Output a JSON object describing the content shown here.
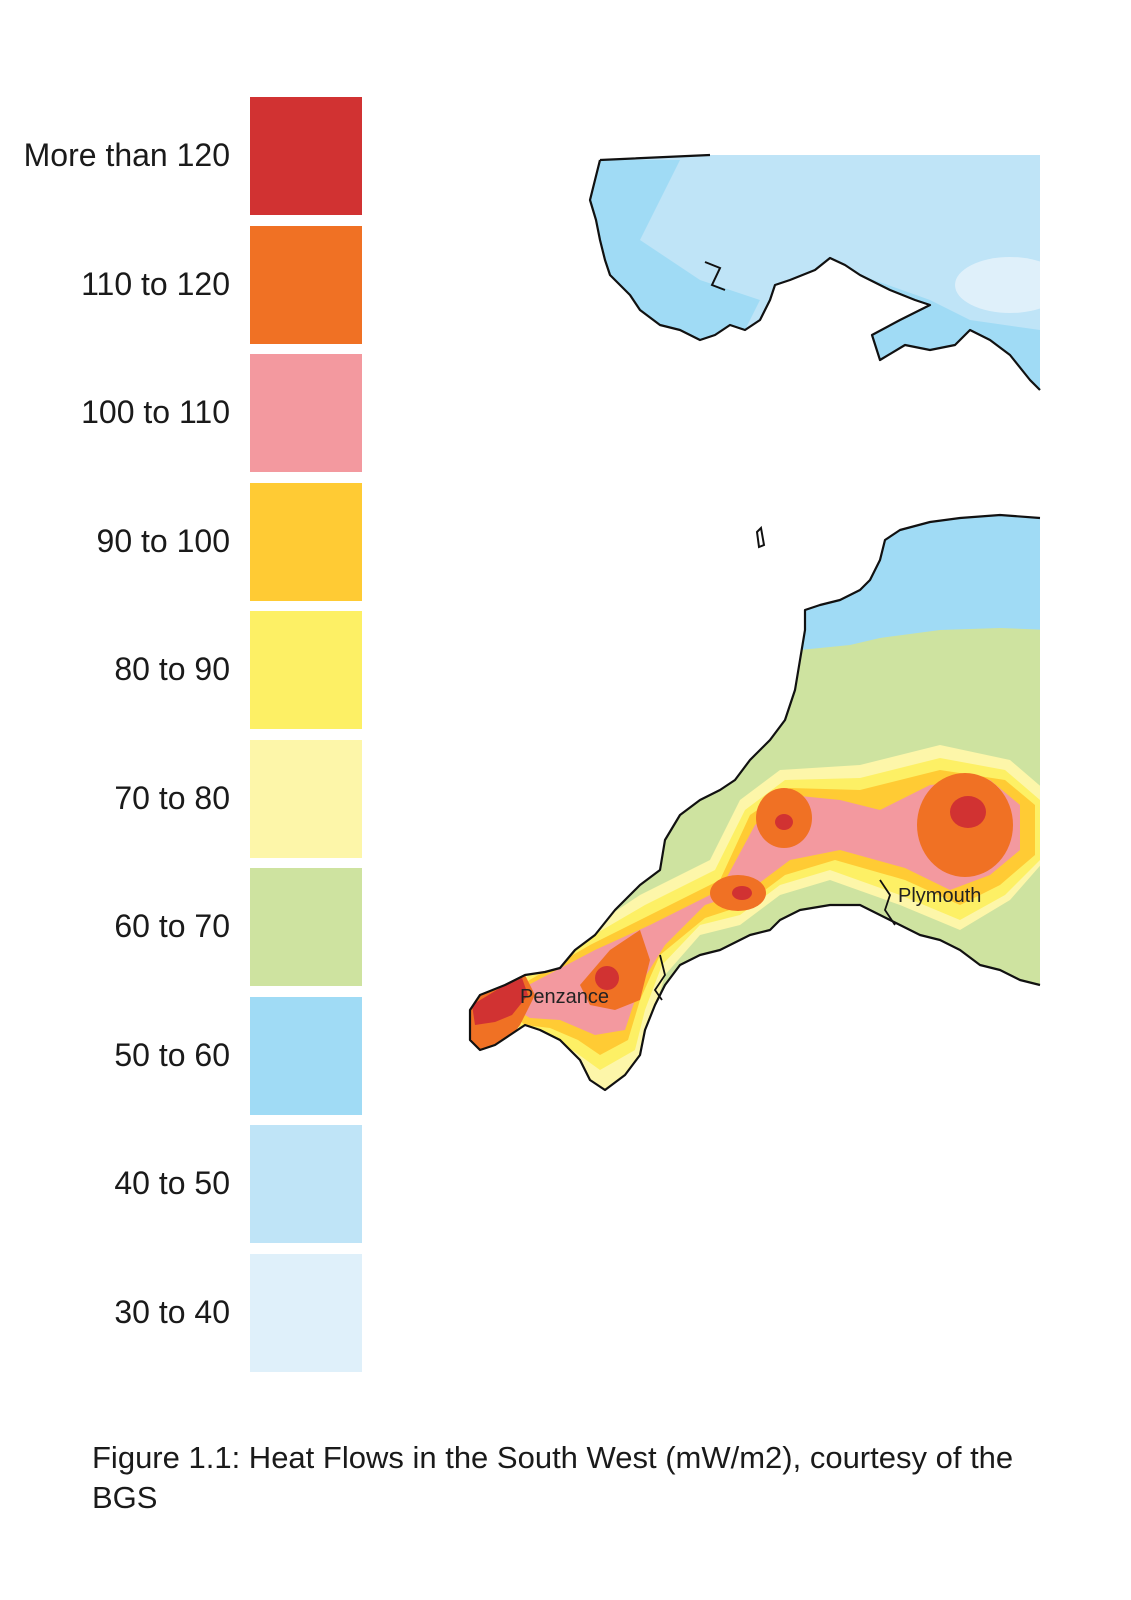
{
  "legend": {
    "items": [
      {
        "label": "More than 120",
        "color": "#d13232"
      },
      {
        "label": "110 to 120",
        "color": "#f07124"
      },
      {
        "label": "100 to 110",
        "color": "#f3999f"
      },
      {
        "label": "90 to 100",
        "color": "#ffcb34"
      },
      {
        "label": "80 to 90",
        "color": "#fdf065"
      },
      {
        "label": "70 to 80",
        "color": "#fdf6a9"
      },
      {
        "label": "60 to 70",
        "color": "#cee3a0"
      },
      {
        "label": "50 to 60",
        "color": "#a0dbf5"
      },
      {
        "label": "40 to 50",
        "color": "#bfe4f7"
      },
      {
        "label": "30 to 40",
        "color": "#dff0fa"
      }
    ]
  },
  "map": {
    "places": [
      {
        "name": "Penzance"
      },
      {
        "name": "Plymouth"
      }
    ]
  },
  "caption": "Figure 1.1: Heat Flows in the South West (mW/m2), courtesy of the BGS"
}
